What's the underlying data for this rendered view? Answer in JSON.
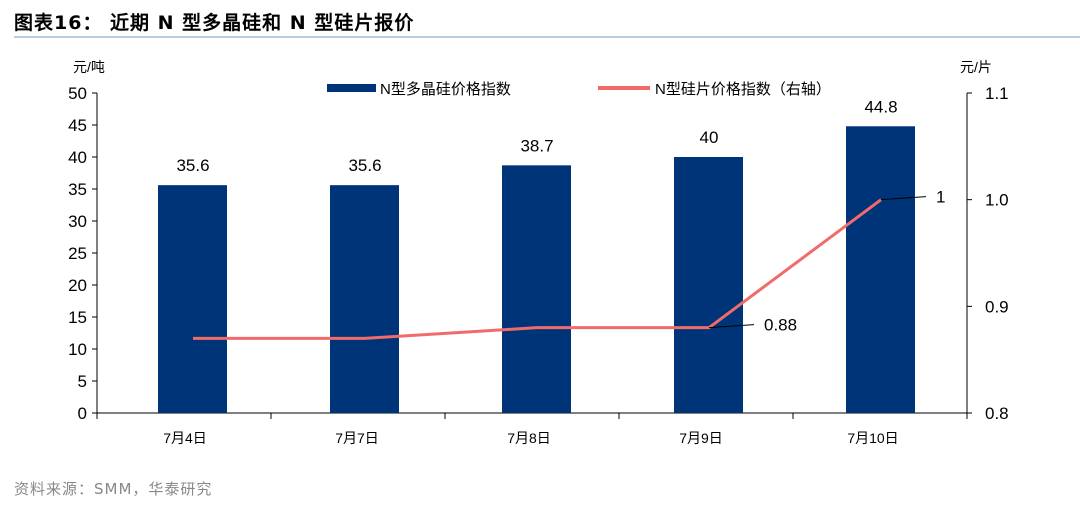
{
  "title": "图表16： 近期 N 型多晶硅和 N 型硅片报价",
  "source": "资料来源：SMM，华泰研究",
  "chart_data": {
    "type": "bar+line",
    "categories": [
      "7月4日",
      "7月7日",
      "7月8日",
      "7月9日",
      "7月10日"
    ],
    "series": [
      {
        "name": "N型多晶硅价格指数",
        "type": "bar",
        "axis": "left",
        "color": "#003478",
        "values": [
          35.6,
          35.6,
          38.7,
          40,
          44.8
        ],
        "data_labels": [
          "35.6",
          "35.6",
          "38.7",
          "40",
          "44.8"
        ]
      },
      {
        "name": "N型硅片价格指数（右轴）",
        "type": "line",
        "axis": "right",
        "color": "#f26b6b",
        "values": [
          0.87,
          0.87,
          0.88,
          0.88,
          1.0
        ],
        "data_labels": {
          "3": "0.88",
          "4": "1"
        }
      }
    ],
    "left_axis": {
      "unit": "元/吨",
      "ylim": [
        0,
        50
      ],
      "ticks": [
        "0",
        "5",
        "10",
        "15",
        "20",
        "25",
        "30",
        "35",
        "40",
        "45",
        "50"
      ]
    },
    "right_axis": {
      "unit": "元/片",
      "ylim": [
        0.8,
        1.1
      ],
      "ticks": [
        "0.8",
        "0.9",
        "1.0",
        "1.1"
      ]
    },
    "legend": "top",
    "grid": false
  }
}
